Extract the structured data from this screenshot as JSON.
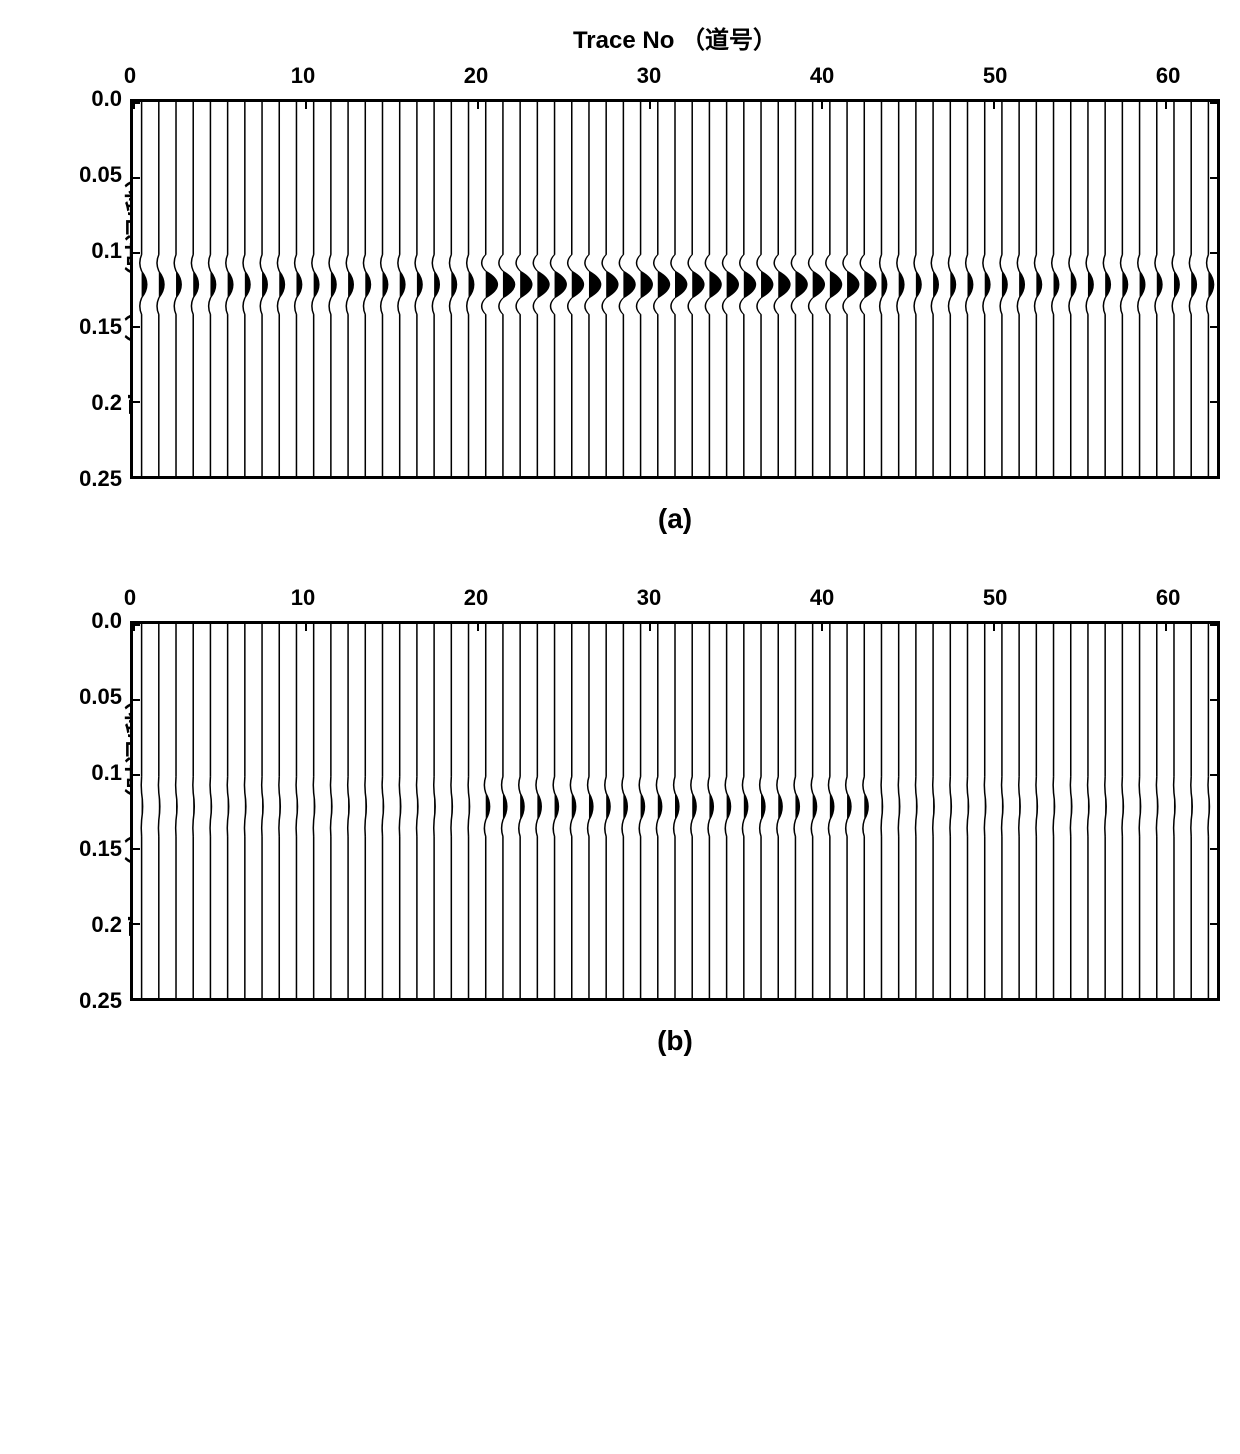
{
  "figure": {
    "background_color": "#ffffff",
    "line_color": "#000000",
    "xlabel": "Trace No  （道号）",
    "ylabel": "Time（s） （时间/秒）",
    "xlim": [
      0,
      63
    ],
    "ylim": [
      0.0,
      0.25
    ],
    "xticks": [
      0,
      10,
      20,
      30,
      40,
      50,
      60
    ],
    "xtick_labels": [
      "0",
      "10",
      "20",
      "30",
      "40",
      "50",
      "60"
    ],
    "yticks": [
      0.0,
      0.05,
      0.1,
      0.15,
      0.2,
      0.25
    ],
    "ytick_labels": [
      "0.0",
      "0.05",
      "0.1",
      "0.15",
      "0.2",
      "0.25"
    ],
    "title_fontsize": 24,
    "tick_fontsize": 22,
    "n_traces": 63,
    "event_time": 0.122,
    "wavelet_half_width_s": 0.02,
    "panels": [
      {
        "id": "a",
        "caption": "(a)",
        "base_amp": 0.6,
        "high_amp": 1.35,
        "high_range": [
          20,
          42
        ]
      },
      {
        "id": "b",
        "caption": "(b)",
        "base_amp": 0.12,
        "high_amp": 0.45,
        "high_range": [
          20,
          42
        ]
      }
    ]
  }
}
